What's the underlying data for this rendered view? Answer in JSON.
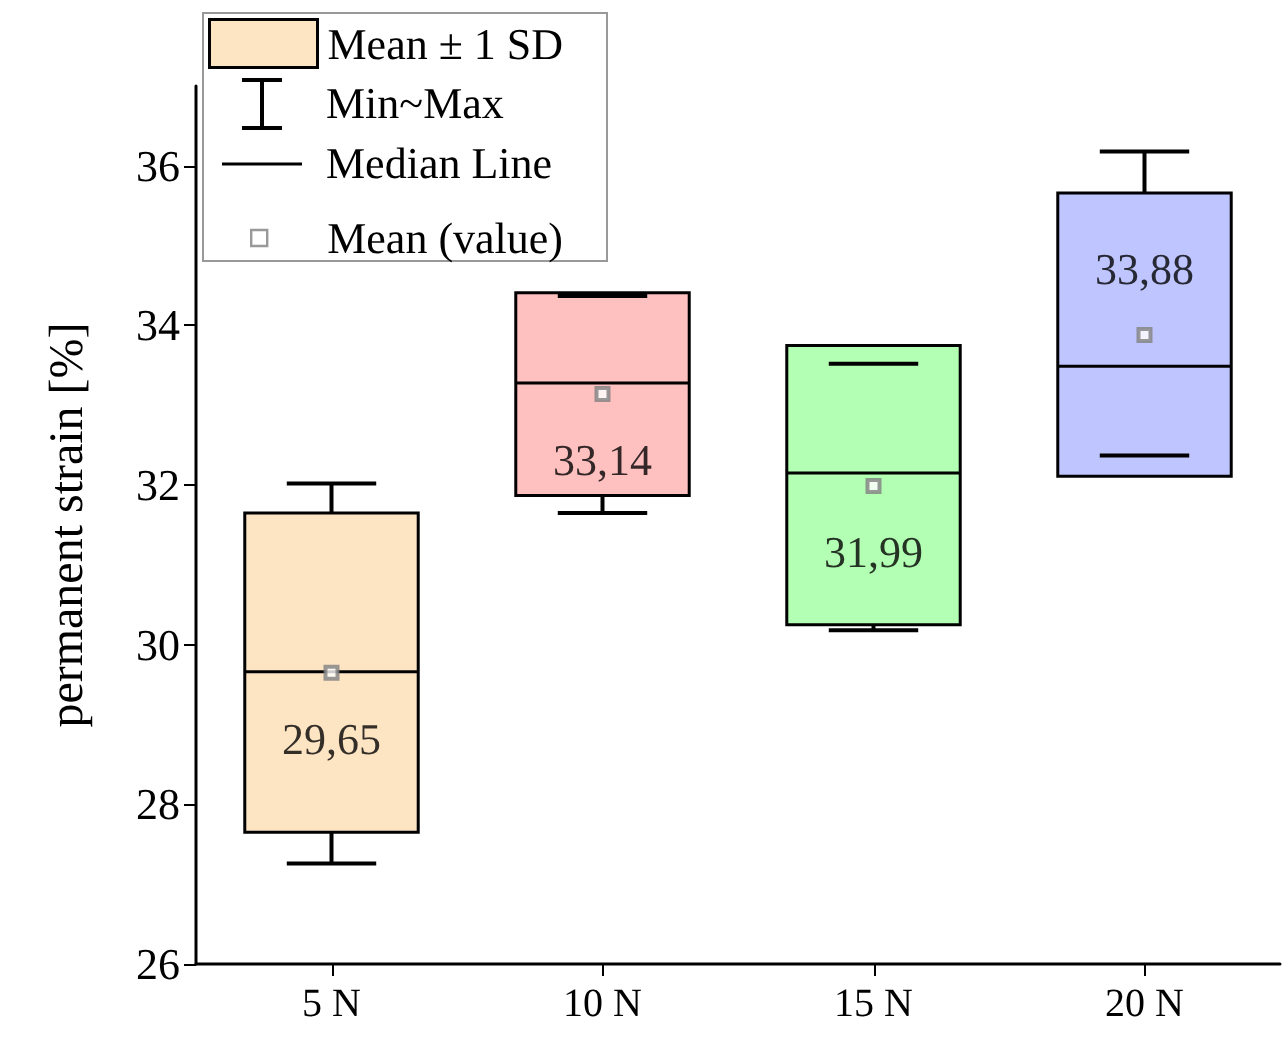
{
  "chart_data": {
    "type": "box",
    "ylabel": "permanent strain [%]",
    "categories": [
      "5 N",
      "10 N",
      "15 N",
      "20 N"
    ],
    "ylim": [
      26,
      37
    ],
    "yticks": [
      26,
      28,
      30,
      32,
      34,
      36
    ],
    "grid": false,
    "legend": "top left",
    "annotations": [
      "Min~Max",
      "Median Line"
    ],
    "series": [
      {
        "name": "Mean ± 1 SD",
        "type": "box",
        "colors": [
          "#fde5c4",
          "#ffc0c0",
          "#b3ffb3",
          "#bfc5ff"
        ],
        "boxes": [
          {
            "low": 27.26,
            "q1": 27.65,
            "median": 29.66,
            "q3": 31.65,
            "high": 32.02
          },
          {
            "low": 31.65,
            "q1": 31.87,
            "median": 33.28,
            "q3": 34.41,
            "high": 34.37
          },
          {
            "low": 30.18,
            "q1": 30.25,
            "median": 32.15,
            "q3": 33.75,
            "high": 33.52
          },
          {
            "low": 32.37,
            "q1": 32.11,
            "median": 33.49,
            "q3": 35.66,
            "high": 36.18
          }
        ]
      },
      {
        "name": "Mean (value)",
        "type": "scatter",
        "marker": "square",
        "color": "#808080",
        "x": [
          "5 N",
          "10 N",
          "15 N",
          "20 N"
        ],
        "values": [
          29.65,
          33.14,
          31.99,
          33.88
        ],
        "value_labels": [
          "29,65",
          "33,14",
          "31,99",
          "33,88"
        ]
      }
    ]
  }
}
